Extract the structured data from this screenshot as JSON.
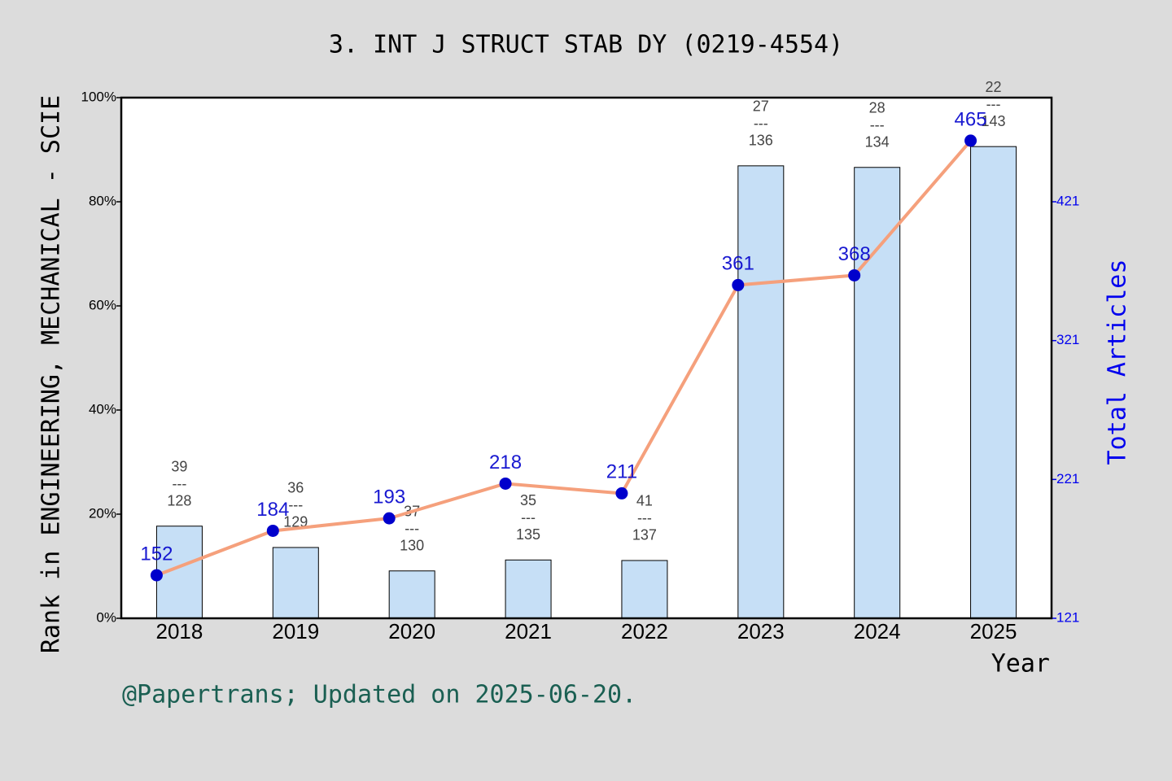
{
  "chart_data": {
    "type": "combo",
    "title": "3. INT J STRUCT STAB DY (0219-4554)",
    "y_label": "Rank in ENGINEERING, MECHANICAL - SCIE",
    "y2_label": "Total Articles",
    "x_label": "Year",
    "footer": "@Papertrans; Updated on 2025-06-20.",
    "categories": [
      "2018",
      "2019",
      "2020",
      "2021",
      "2022",
      "2023",
      "2024",
      "2025"
    ],
    "ylim": [
      0,
      100
    ],
    "yticks": [
      {
        "value": 0,
        "label": "0%"
      },
      {
        "value": 20,
        "label": "20%"
      },
      {
        "value": 40,
        "label": "40%"
      },
      {
        "value": 60,
        "label": "60%"
      },
      {
        "value": 80,
        "label": "80%"
      },
      {
        "value": 100,
        "label": "100%"
      }
    ],
    "y2lim": [
      121,
      496
    ],
    "y2ticks": [
      121,
      221,
      321,
      421
    ],
    "series": [
      {
        "type": "bar",
        "color": "#c6dff6",
        "values": [
          17.7,
          13.6,
          9.1,
          11.2,
          11.1,
          86.9,
          86.6,
          90.6
        ],
        "annotations": [
          [
            "39",
            "---",
            "128"
          ],
          [
            "36",
            "---",
            "129"
          ],
          [
            "37",
            "---",
            "130"
          ],
          [
            "35",
            "---",
            "135"
          ],
          [
            "41",
            "---",
            "137"
          ],
          [
            "27",
            "---",
            "136"
          ],
          [
            "28",
            "---",
            "134"
          ],
          [
            "22",
            "---",
            "143"
          ]
        ]
      },
      {
        "type": "line",
        "axis": "y2",
        "color": "#f5a07c",
        "marker_color": "#0000cc",
        "values": [
          152,
          184,
          193,
          218,
          211,
          361,
          368,
          465
        ]
      }
    ]
  }
}
